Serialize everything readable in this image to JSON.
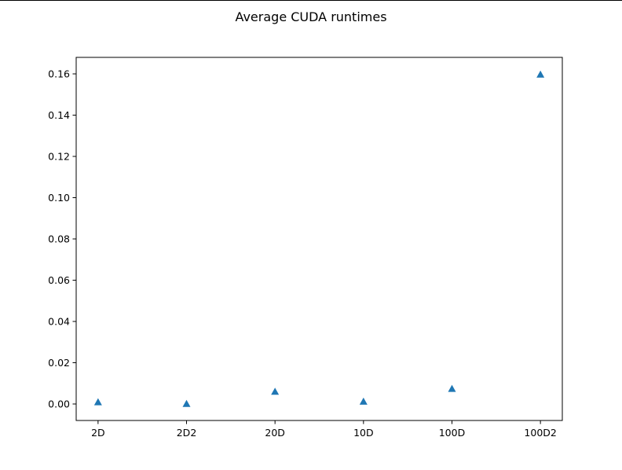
{
  "chart_data": {
    "type": "scatter",
    "title": "Average CUDA runtimes",
    "xlabel": "",
    "ylabel": "",
    "categories": [
      "2D",
      "2D2",
      "20D",
      "10D",
      "100D",
      "100D2"
    ],
    "series": [
      {
        "marker": "triangle-up",
        "color": "#1f77b4",
        "values": [
          0.0009,
          0.0001,
          0.006,
          0.0012,
          0.0074,
          0.1597
        ]
      }
    ],
    "ylim": [
      -0.008,
      0.168
    ],
    "yticks": [
      0.0,
      0.02,
      0.04,
      0.06,
      0.08,
      0.1,
      0.12,
      0.14,
      0.16
    ],
    "ytick_labels": [
      "0.00",
      "0.02",
      "0.04",
      "0.06",
      "0.08",
      "0.10",
      "0.12",
      "0.14",
      "0.16"
    ],
    "grid": false,
    "legend": "none"
  }
}
